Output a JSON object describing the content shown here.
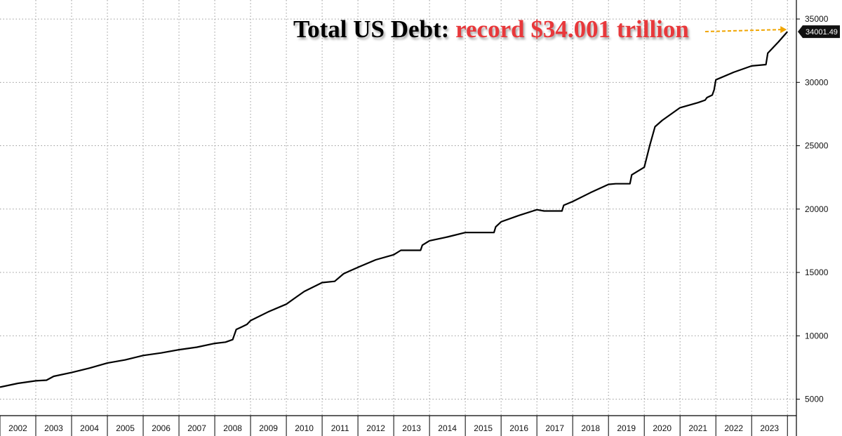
{
  "annotation": {
    "lead": "Total US Debt:",
    "value": "record $34.001 trillion"
  },
  "colors": {
    "line": "#000000",
    "grid": "#9a9a9a",
    "annotation_red": "#e8383b",
    "arrow": "#f0a500",
    "tag_bg": "#111111"
  },
  "chart_data": {
    "type": "line",
    "title": "",
    "xlabel": "",
    "ylabel": "",
    "ylim": [
      3700,
      36500
    ],
    "xlim": [
      2002.0,
      2024.25
    ],
    "yaxis_position": "right",
    "grid": true,
    "y_ticks": [
      5000,
      10000,
      15000,
      20000,
      25000,
      30000,
      35000
    ],
    "x_tick_labels": [
      "2002",
      "2003",
      "2004",
      "2005",
      "2006",
      "2007",
      "2008",
      "2009",
      "2010",
      "2011",
      "2012",
      "2013",
      "2014",
      "2015",
      "2016",
      "2017",
      "2018",
      "2019",
      "2020",
      "2021",
      "2022",
      "2023"
    ],
    "last_value_label": "34001.49",
    "series": [
      {
        "x": [
          2002.0,
          2002.5,
          2003.0,
          2003.3,
          2003.5,
          2004.0,
          2004.5,
          2005.0,
          2005.5,
          2006.0,
          2006.5,
          2007.0,
          2007.5,
          2008.0,
          2008.3,
          2008.5,
          2008.6,
          2008.75,
          2008.9,
          2009.0,
          2009.5,
          2010.0,
          2010.25,
          2010.5,
          2011.0,
          2011.35,
          2011.6,
          2011.8,
          2012.0,
          2012.5,
          2013.0,
          2013.2,
          2013.5,
          2013.75,
          2013.8,
          2014.0,
          2014.5,
          2015.0,
          2015.5,
          2015.8,
          2015.85,
          2016.0,
          2016.5,
          2017.0,
          2017.2,
          2017.7,
          2017.75,
          2018.0,
          2018.5,
          2019.0,
          2019.2,
          2019.6,
          2019.65,
          2020.0,
          2020.15,
          2020.3,
          2020.5,
          2021.0,
          2021.5,
          2021.7,
          2021.75,
          2021.9,
          2021.95,
          2022.0,
          2022.5,
          2023.0,
          2023.4,
          2023.45,
          2023.75,
          2024.0
        ],
        "values": [
          5950,
          6250,
          6450,
          6500,
          6800,
          7100,
          7450,
          7850,
          8100,
          8450,
          8650,
          8900,
          9100,
          9400,
          9500,
          9700,
          10500,
          10700,
          10900,
          11200,
          11900,
          12500,
          13000,
          13500,
          14200,
          14300,
          14900,
          15150,
          15400,
          16000,
          16400,
          16750,
          16750,
          16750,
          17150,
          17500,
          17800,
          18150,
          18150,
          18150,
          18600,
          19000,
          19500,
          19950,
          19850,
          19850,
          20300,
          20600,
          21300,
          21950,
          22000,
          22000,
          22700,
          23300,
          25000,
          26500,
          27000,
          28000,
          28400,
          28600,
          28800,
          29000,
          29400,
          30200,
          30800,
          31300,
          31400,
          32300,
          33200,
          34001.49
        ]
      }
    ]
  }
}
